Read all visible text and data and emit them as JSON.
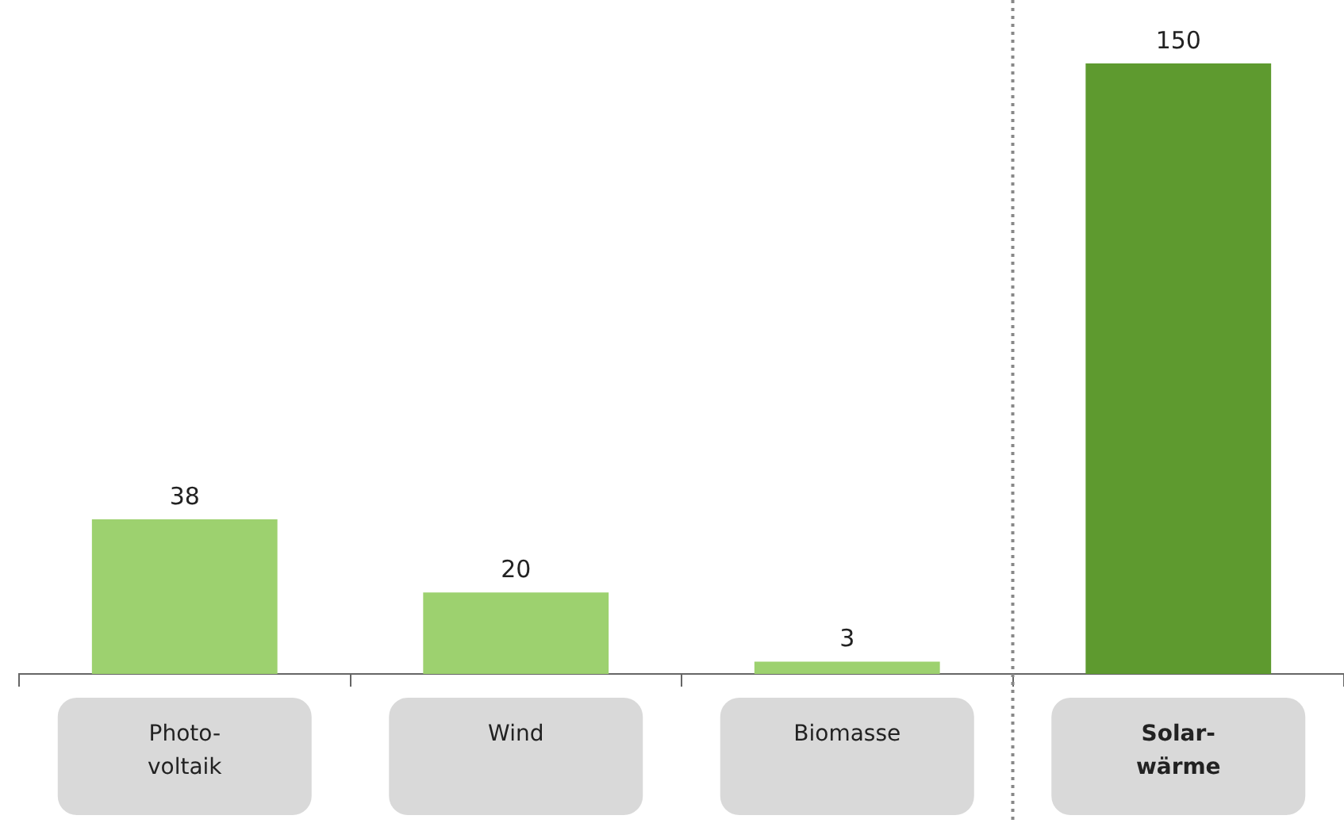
{
  "chart_data": {
    "type": "bar",
    "categories": [
      "Photo-\nvoltaik",
      "Wind",
      "Biomasse",
      "Solar-\nwärme"
    ],
    "values": [
      38,
      20,
      3,
      150
    ],
    "colors": [
      "#9dd16f",
      "#9dd16f",
      "#9dd16f",
      "#5e9a2f"
    ],
    "ylim": [
      0,
      150
    ],
    "data_labels": true,
    "tick_labels": "x",
    "grid": false,
    "legend": false
  }
}
